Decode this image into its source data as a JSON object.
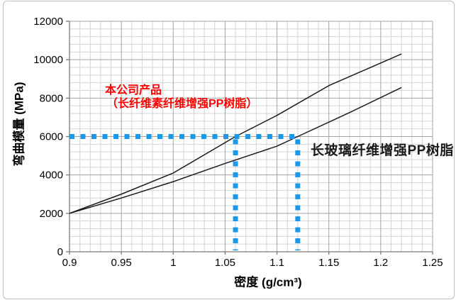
{
  "page": {
    "background": "#ffffff",
    "border_color": "#bfbfbf"
  },
  "chart_data": {
    "type": "line",
    "title": "",
    "xlabel": "密度 (g/cm³)",
    "ylabel": "弯曲模量 (MPa)",
    "xlim": [
      0.9,
      1.25
    ],
    "ylim": [
      0,
      12000
    ],
    "x_tick_values": [
      0.9,
      0.95,
      1,
      1.05,
      1.1,
      1.15,
      1.2,
      1.25
    ],
    "x_tick_labels": [
      "0.9",
      "0.95",
      "1",
      "1.05",
      "1.1",
      "1.15",
      "1.2",
      "1.25"
    ],
    "y_tick_values": [
      0,
      2000,
      4000,
      6000,
      8000,
      10000,
      12000
    ],
    "y_tick_labels": [
      "0",
      "2000",
      "4000",
      "6000",
      "8000",
      "10000",
      "12000"
    ],
    "x_minor_step": 0.01,
    "y_minor_step": 400,
    "grid": "on",
    "legend_position": "none (lines labeled by annotations)",
    "series": [
      {
        "name": "本公司产品（长纤维素纤维增强PP树脂）",
        "color": "#1c1c1c",
        "points": [
          [
            0.9,
            2000
          ],
          [
            0.95,
            3000
          ],
          [
            1.0,
            4100
          ],
          [
            1.06,
            6000
          ],
          [
            1.1,
            7100
          ],
          [
            1.15,
            8650
          ],
          [
            1.22,
            10300
          ]
        ]
      },
      {
        "name": "长玻璃纤维增强PP树脂",
        "color": "#1c1c1c",
        "points": [
          [
            0.9,
            2000
          ],
          [
            0.95,
            2800
          ],
          [
            1.0,
            3650
          ],
          [
            1.05,
            4600
          ],
          [
            1.1,
            5500
          ],
          [
            1.12,
            6000
          ],
          [
            1.17,
            7250
          ],
          [
            1.22,
            8550
          ]
        ]
      }
    ],
    "guides": {
      "description": "thick dotted reference lines: horizontal at 6000 MPa, verticals dropping at density 1.06 and 1.12",
      "color": "#1b99e8",
      "y_value": 6000,
      "x_values": [
        1.06,
        1.12
      ]
    }
  },
  "annotations": {
    "company_label_line1": "本公司产品",
    "company_label_line2": "（长纤维素纤维增强PP树脂）",
    "company_label_color": "#ff0000",
    "glass_label": "长玻璃纤维增强PP树脂",
    "glass_label_color": "#1a1a1a"
  },
  "colors": {
    "grid_minor": "#d4d4d4",
    "grid_major": "#a3a3a3",
    "axis": "#7a7a7a",
    "tick_text": "#000000"
  }
}
